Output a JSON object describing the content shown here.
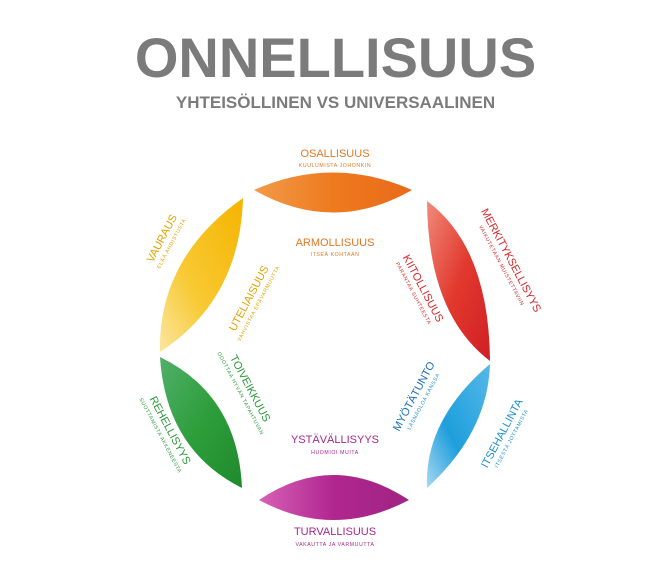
{
  "header": {
    "title": "ONNELLISUUS",
    "subtitle": "YHTEISÖLLINEN VS UNIVERSAALINEN"
  },
  "colors": {
    "heading": "#7b7b7b",
    "orange": "#ee7a1e",
    "red": "#df2b26",
    "blue": "#1e9fdc",
    "magenta": "#b0268f",
    "green": "#2e9e3b",
    "yellow": "#f5b400"
  },
  "segments": [
    {
      "id": "top",
      "outer": {
        "label": "OSALLISUUS",
        "sub": "KUULUMISTA JOHONKIN"
      },
      "inner": {
        "label": "ARMOLLISUUS",
        "sub": "ITSEÄ KOHTAAN"
      }
    },
    {
      "id": "upper-right",
      "outer": {
        "label": "MERKITYKSELLISYYS",
        "sub": "VAIKUTETAAN MUISTETTAVIIN"
      },
      "inner": {
        "label": "KIITOLLISUUS",
        "sub": "PARANTAA SUHTEESTA"
      }
    },
    {
      "id": "lower-right",
      "outer": {
        "label": "ITSEHALLINTA",
        "sub": "ITSESTÄ JOTTAMISTA"
      },
      "inner": {
        "label": "MYÖTÄTUNTO",
        "sub": "LÄSNÄOLOA KANSSA"
      }
    },
    {
      "id": "bottom",
      "outer": {
        "label": "TURVALLISUUS",
        "sub": "VAKAUTTA JA VARMUUTTA"
      },
      "inner": {
        "label": "YSTÄVÄLLISYYS",
        "sub": "HUOMIOI MUITA"
      }
    },
    {
      "id": "lower-left",
      "outer": {
        "label": "REHELLISYYS",
        "sub": "SUOTTAMISTA AKKENEESTA"
      },
      "inner": {
        "label": "TOIVEIKKUUS",
        "sub": "ODOTTAA HYVÄN TAPAHTUVAN"
      }
    },
    {
      "id": "upper-left",
      "outer": {
        "label": "VAURAUS",
        "sub": "ELÄÄ AHDISTUSTA"
      },
      "inner": {
        "label": "UTELIAISUUS",
        "sub": "VAHVISTAA EPÄVARMUUTTA"
      }
    }
  ]
}
